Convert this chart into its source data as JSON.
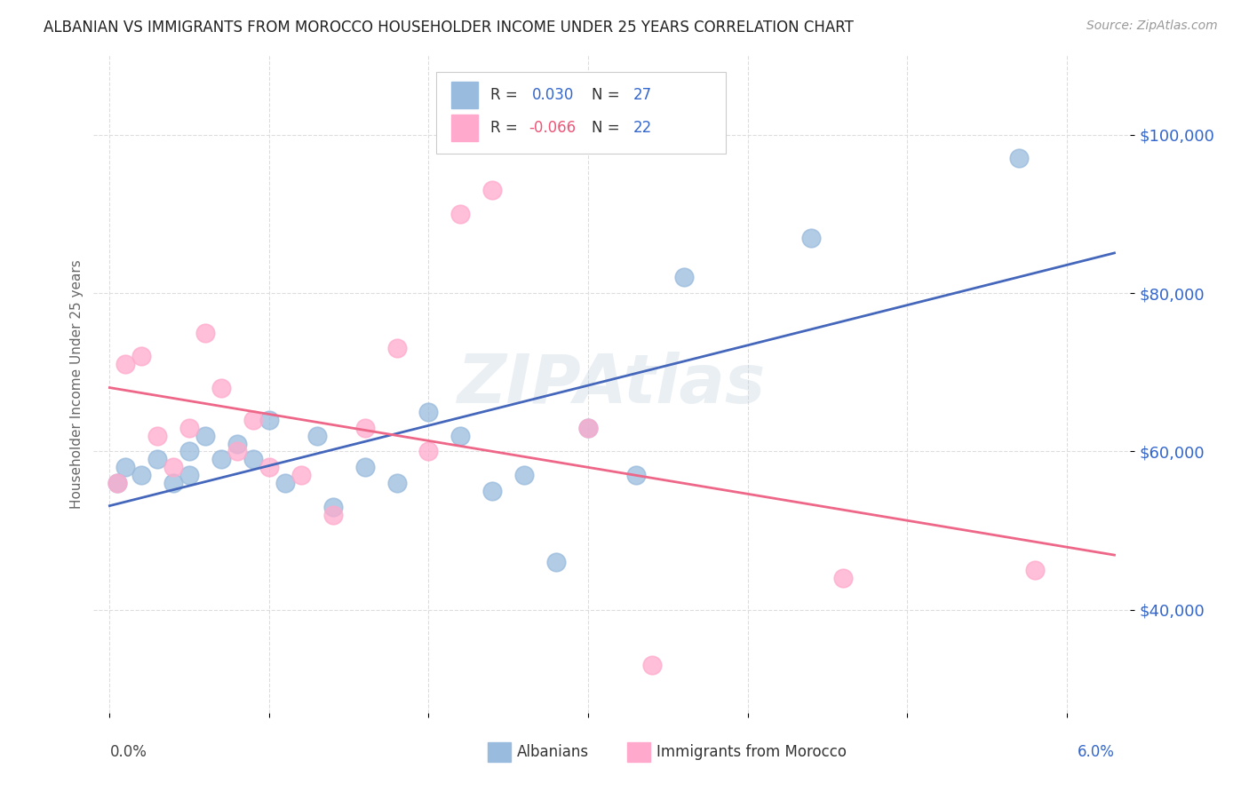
{
  "title": "ALBANIAN VS IMMIGRANTS FROM MOROCCO HOUSEHOLDER INCOME UNDER 25 YEARS CORRELATION CHART",
  "source": "Source: ZipAtlas.com",
  "ylabel": "Householder Income Under 25 years",
  "ytick_labels": [
    "$40,000",
    "$60,000",
    "$80,000",
    "$100,000"
  ],
  "ytick_values": [
    40000,
    60000,
    80000,
    100000
  ],
  "legend_albanians": "Albanians",
  "legend_morocco": "Immigrants from Morocco",
  "r_albanians": 0.03,
  "n_albanians": 27,
  "r_morocco": -0.066,
  "n_morocco": 22,
  "color_blue": "#99BBDD",
  "color_pink": "#FFAACC",
  "color_line_blue": "#4466BB",
  "color_line_pink": "#EE6688",
  "color_blue_text": "#3366CC",
  "color_pink_text": "#EE5577",
  "background": "#FFFFFF",
  "watermark": "ZIPAtlas",
  "albanians_x": [
    0.0005,
    0.001,
    0.002,
    0.003,
    0.004,
    0.005,
    0.005,
    0.006,
    0.007,
    0.008,
    0.009,
    0.01,
    0.011,
    0.013,
    0.014,
    0.016,
    0.018,
    0.02,
    0.022,
    0.024,
    0.026,
    0.028,
    0.03,
    0.033,
    0.036,
    0.044,
    0.057
  ],
  "albanians_y": [
    56000,
    58000,
    57000,
    59000,
    56000,
    60000,
    57000,
    62000,
    59000,
    61000,
    59000,
    64000,
    56000,
    62000,
    53000,
    58000,
    56000,
    65000,
    62000,
    55000,
    57000,
    46000,
    63000,
    57000,
    82000,
    87000,
    97000
  ],
  "morocco_x": [
    0.0005,
    0.001,
    0.002,
    0.003,
    0.004,
    0.005,
    0.006,
    0.007,
    0.008,
    0.009,
    0.01,
    0.012,
    0.014,
    0.016,
    0.018,
    0.02,
    0.022,
    0.024,
    0.03,
    0.034,
    0.046,
    0.058
  ],
  "morocco_y": [
    56000,
    71000,
    72000,
    62000,
    58000,
    63000,
    75000,
    68000,
    60000,
    64000,
    58000,
    57000,
    52000,
    63000,
    73000,
    60000,
    90000,
    93000,
    63000,
    33000,
    44000,
    45000
  ],
  "xlim": [
    -0.001,
    0.064
  ],
  "ylim": [
    27000,
    110000
  ],
  "xtick_positions": [
    0.0,
    0.01,
    0.02,
    0.03,
    0.04,
    0.05,
    0.06
  ]
}
